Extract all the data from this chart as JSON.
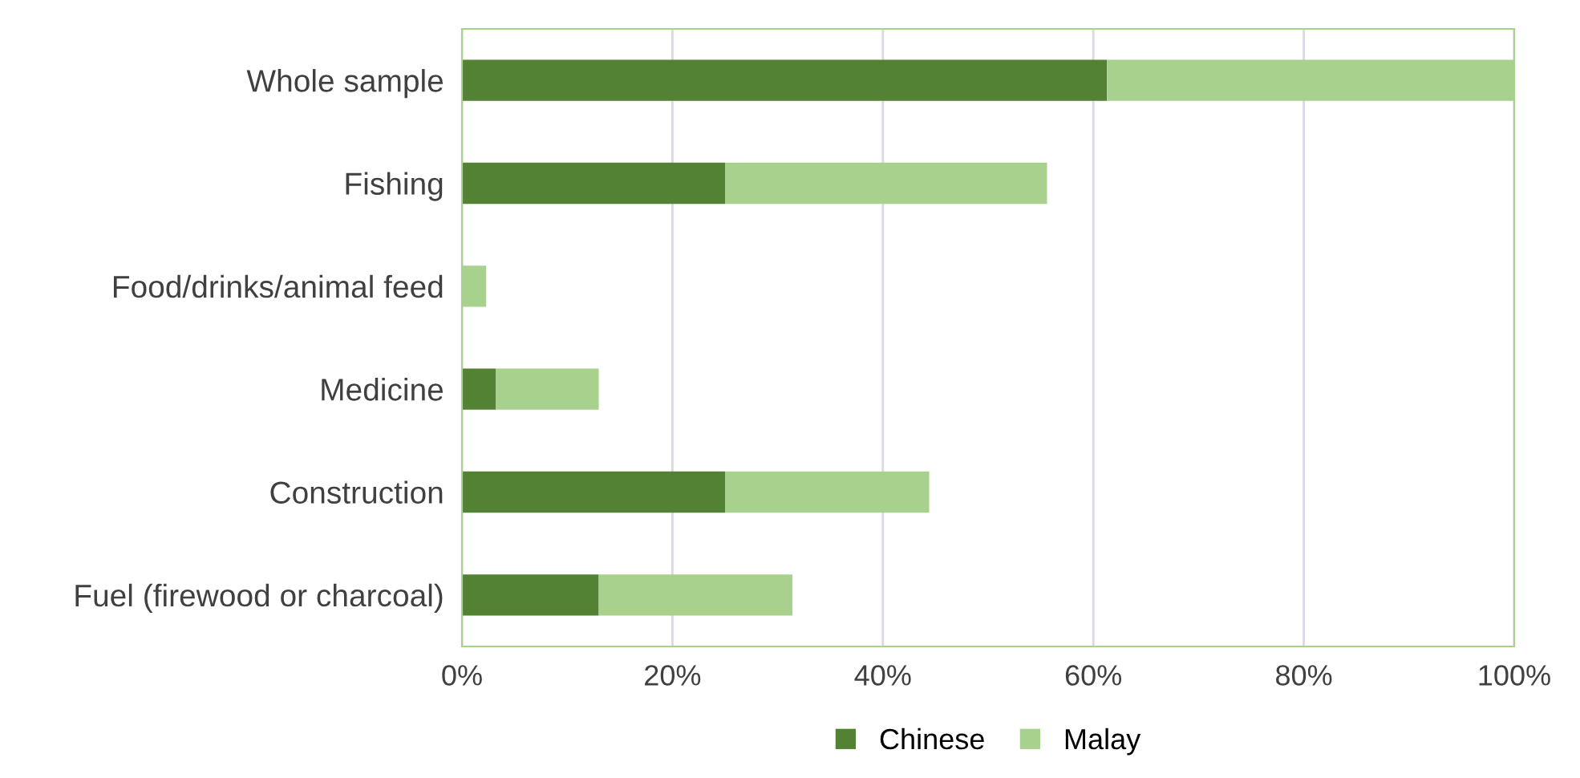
{
  "chart_data": {
    "type": "bar",
    "orientation": "horizontal",
    "stacked": true,
    "categories": [
      "Whole sample",
      "Fishing",
      "Food/drinks/animal feed",
      "Medicine",
      "Construction",
      "Fuel (firewood or charcoal)"
    ],
    "series": [
      {
        "name": "Chinese",
        "color": "#548235",
        "values": [
          61.3,
          25.0,
          0,
          3.2,
          25.0,
          13.0
        ]
      },
      {
        "name": "Malay",
        "color": "#a9d18e",
        "values": [
          38.7,
          30.6,
          2.3,
          9.8,
          19.4,
          18.4
        ]
      }
    ],
    "xlim": [
      0,
      100
    ],
    "xticks": [
      {
        "value": 0,
        "label": "0%"
      },
      {
        "value": 20,
        "label": "20%"
      },
      {
        "value": 40,
        "label": "40%"
      },
      {
        "value": 60,
        "label": "60%"
      },
      {
        "value": 80,
        "label": "80%"
      },
      {
        "value": 100,
        "label": "100%"
      }
    ],
    "grid": "x",
    "legend": "bottom"
  }
}
